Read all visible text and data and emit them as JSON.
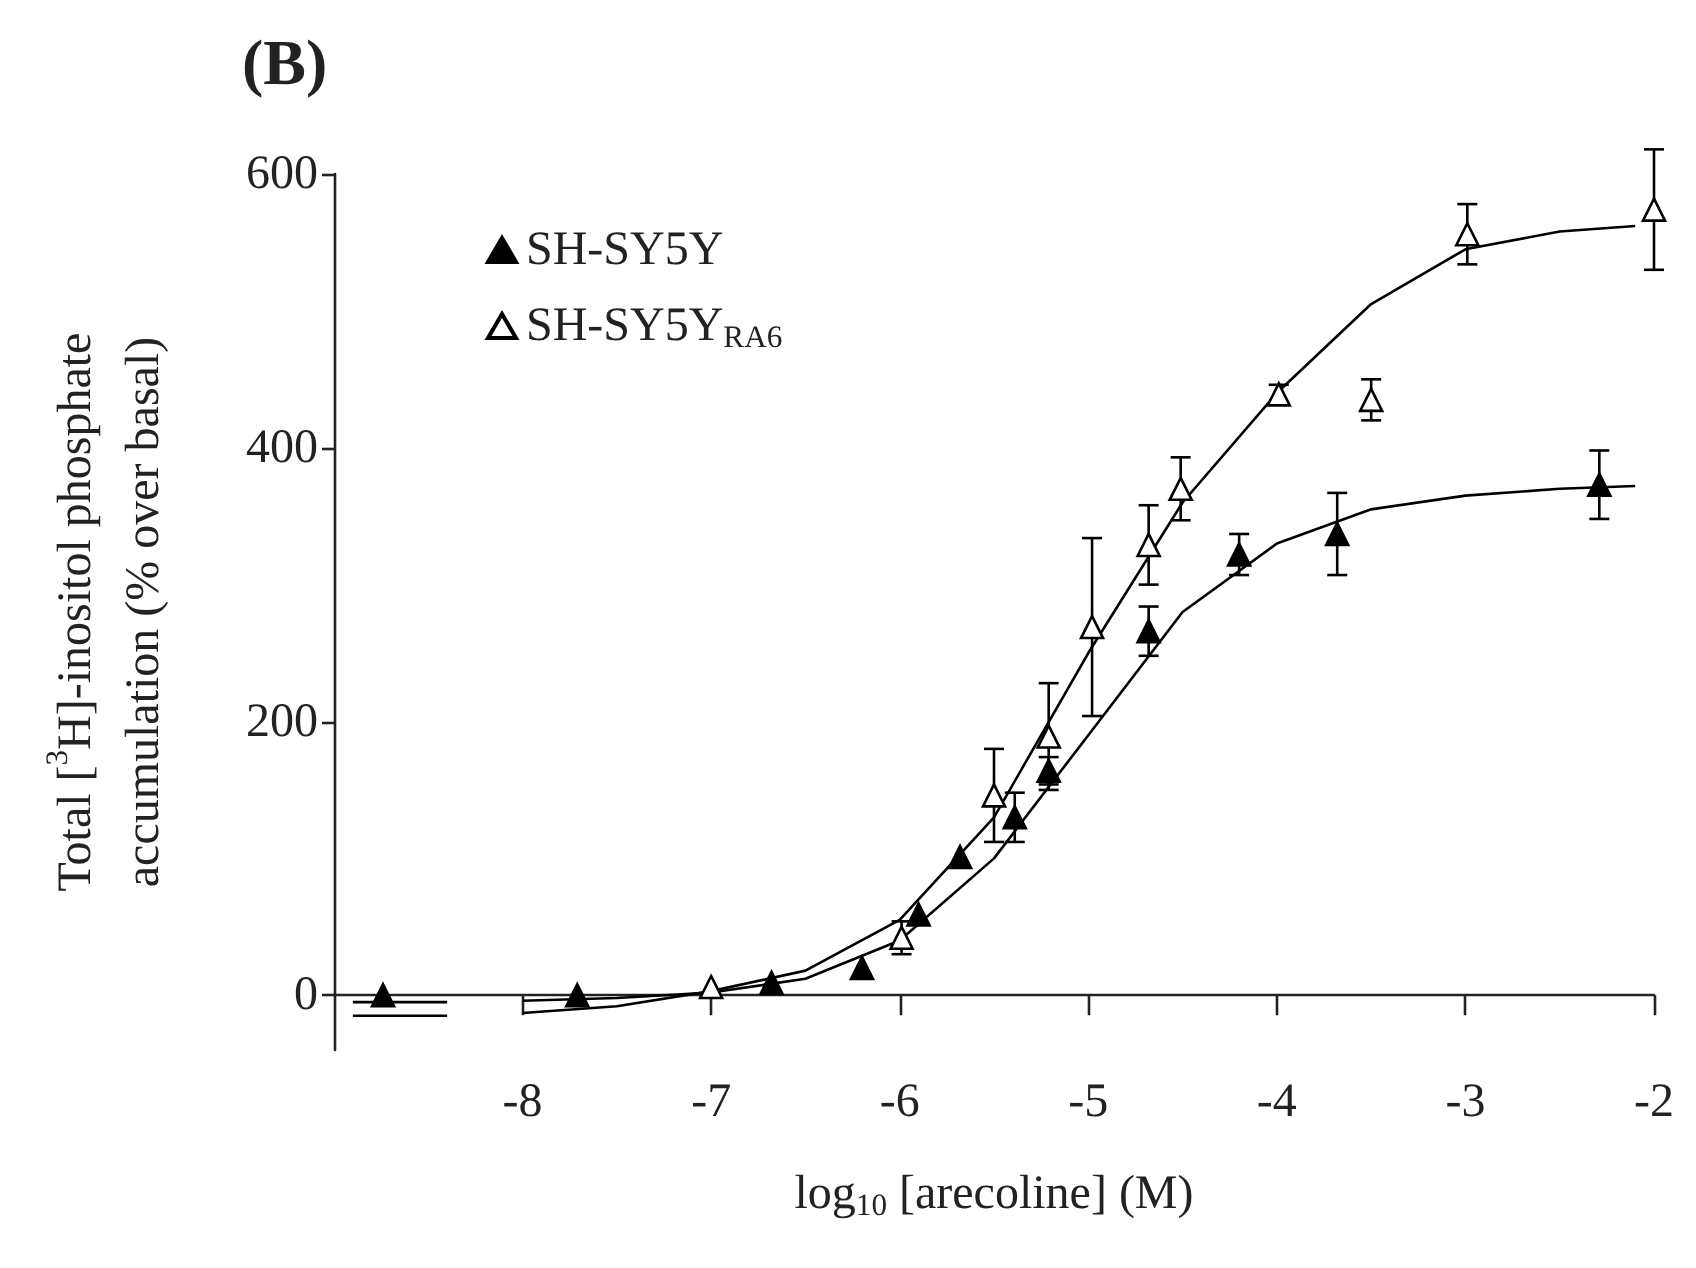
{
  "chart_data": {
    "type": "scatter",
    "title": "(B)",
    "xlabel": "log$_{10}$ [arecoline] (M)",
    "ylabel": "Total [$^{3}$H]-inositol phosphate\naccumulation (% over basal)",
    "xlim": [
      -9,
      -2
    ],
    "ylim": [
      -40,
      600
    ],
    "xticks": [
      -8,
      -7,
      -6,
      -5,
      -4,
      -3,
      -2
    ],
    "yticks": [
      0,
      200,
      400,
      600
    ],
    "grid": false,
    "legend": "top left",
    "marker": "triangle",
    "series": [
      {
        "name": "SH-SY5Y",
        "color": "#000000",
        "x": [
          -8.74,
          -7.71,
          -6.68,
          -6.2,
          -5.9,
          -5.68,
          -5.39,
          -5.21,
          -4.68,
          -4.2,
          -3.68,
          -2.29
        ],
        "values": [
          0,
          0,
          9,
          20,
          59,
          101,
          130,
          164,
          266,
          322,
          337,
          373
        ],
        "errors": [
          null,
          null,
          null,
          null,
          null,
          null,
          18,
          10,
          18,
          15,
          30,
          25
        ]
      },
      {
        "name": "SH-SY5Y$_{RA6}$",
        "color": "#000000",
        "x": [
          -7.0,
          -5.99,
          -5.5,
          -5.21,
          -4.98,
          -4.68,
          -4.51,
          -3.99,
          -3.5,
          -2.99,
          -2.0
        ],
        "values": [
          6,
          42,
          146,
          189,
          269,
          329,
          370,
          439,
          435,
          556,
          574
        ],
        "errors": [
          null,
          12,
          34,
          39,
          65,
          29,
          23,
          7,
          15,
          22,
          44
        ]
      },
      {
        "type": "line",
        "marker": "none",
        "color": "#000000",
        "x": [
          -8.9,
          -8.4,
          -8.2,
          -8.0,
          -7.5,
          -7.0,
          -6.5,
          -6.0,
          -5.5,
          -5.0,
          -4.5,
          -4.0,
          -3.5,
          -3.0,
          -2.5,
          -2.1
        ],
        "values": [
          -5,
          -5,
          null,
          -4,
          -2,
          2,
          12,
          40,
          100,
          190,
          280,
          330,
          355,
          365,
          370,
          372
        ]
      },
      {
        "type": "line",
        "marker": "none",
        "color": "#000000",
        "x": [
          -8.9,
          -8.4,
          -8.2,
          -8.0,
          -7.5,
          -7.0,
          -6.5,
          -6.0,
          -5.5,
          -5.0,
          -4.5,
          -4.0,
          -3.5,
          -3.0,
          -2.5,
          -2.1
        ],
        "values": [
          -15,
          -15,
          null,
          -13,
          -8,
          3,
          18,
          55,
          130,
          250,
          360,
          440,
          505,
          545,
          558,
          562
        ]
      }
    ]
  }
}
